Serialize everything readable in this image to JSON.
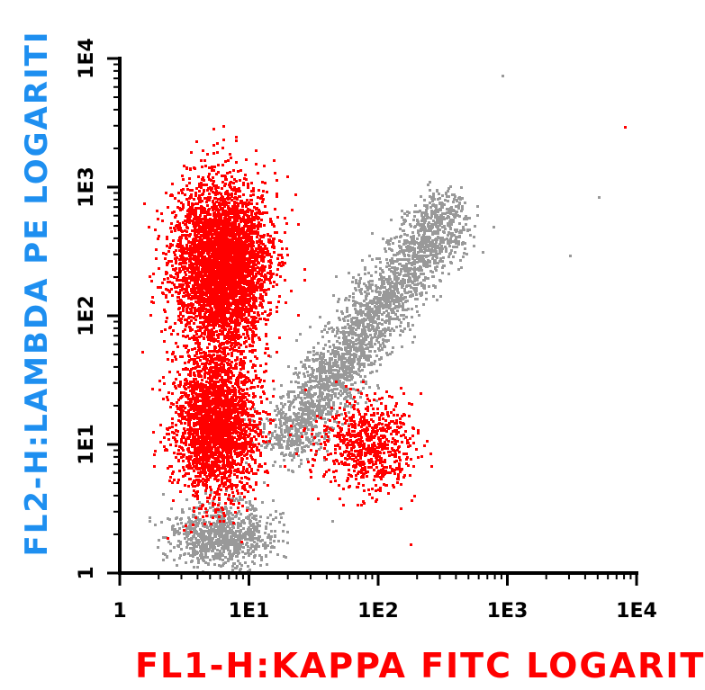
{
  "chart_data": {
    "type": "scatter",
    "title": "",
    "xlabel": "FL1-H:KAPPA FITC LOGARIT",
    "ylabel": "FL2-H:LAMBDA PE LOGARITI",
    "x_scale": "log",
    "y_scale": "log",
    "xlim": [
      1,
      10000
    ],
    "ylim": [
      1,
      10000
    ],
    "x_ticks": [
      "1",
      "1E1",
      "1E2",
      "1E3",
      "1E4"
    ],
    "y_ticks": [
      "1",
      "1E1",
      "1E2",
      "1E3",
      "1E4"
    ],
    "grid": false,
    "colors": {
      "red_population": "#ff0000",
      "gray_population": "#999999",
      "xlabel": "#ff0000",
      "ylabel": "#1e8ff0"
    },
    "series": [
      {
        "color": "red",
        "clusters": [
          {
            "center": [
              6,
              250
            ],
            "spread_decades": [
              0.18,
              0.32
            ],
            "count": 4200
          },
          {
            "center": [
              5.5,
              15
            ],
            "spread_decades": [
              0.16,
              0.28
            ],
            "count": 2600
          },
          {
            "center": [
              80,
              10
            ],
            "spread_decades": [
              0.18,
              0.18
            ],
            "count": 700
          }
        ]
      },
      {
        "color": "gray",
        "clusters": [
          {
            "diagonal_from": [
              18,
              10
            ],
            "diagonal_to": [
              350,
              700
            ],
            "width_decades": 0.12,
            "count": 2600
          },
          {
            "center": [
              6,
              2
            ],
            "spread_decades": [
              0.2,
              0.12
            ],
            "count": 900
          }
        ]
      }
    ],
    "outliers": [
      {
        "color": "red",
        "x": 8000,
        "y": 3000
      },
      {
        "color": "gray",
        "x": 900,
        "y": 7500
      },
      {
        "color": "gray",
        "x": 5000,
        "y": 850
      },
      {
        "color": "gray",
        "x": 3000,
        "y": 300
      }
    ]
  }
}
